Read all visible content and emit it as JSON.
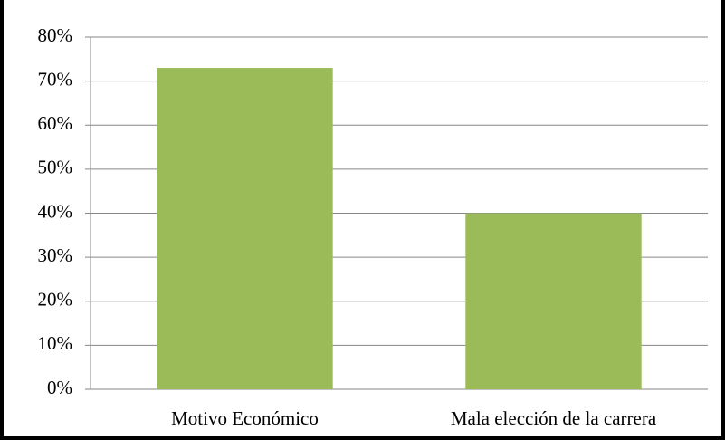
{
  "chart_data": {
    "type": "bar",
    "categories": [
      "Motivo Económico",
      "Mala elección de la carrera"
    ],
    "values": [
      73,
      40
    ],
    "color": "#9bbb59",
    "ylim": [
      0,
      80
    ],
    "yticks": [
      {
        "value": 0,
        "label": "0%"
      },
      {
        "value": 10,
        "label": "10%"
      },
      {
        "value": 20,
        "label": "20%"
      },
      {
        "value": 30,
        "label": "30%"
      },
      {
        "value": 40,
        "label": "40%"
      },
      {
        "value": 50,
        "label": "50%"
      },
      {
        "value": 60,
        "label": "60%"
      },
      {
        "value": 70,
        "label": "70%"
      },
      {
        "value": 80,
        "label": "80%"
      }
    ],
    "grid": true
  }
}
